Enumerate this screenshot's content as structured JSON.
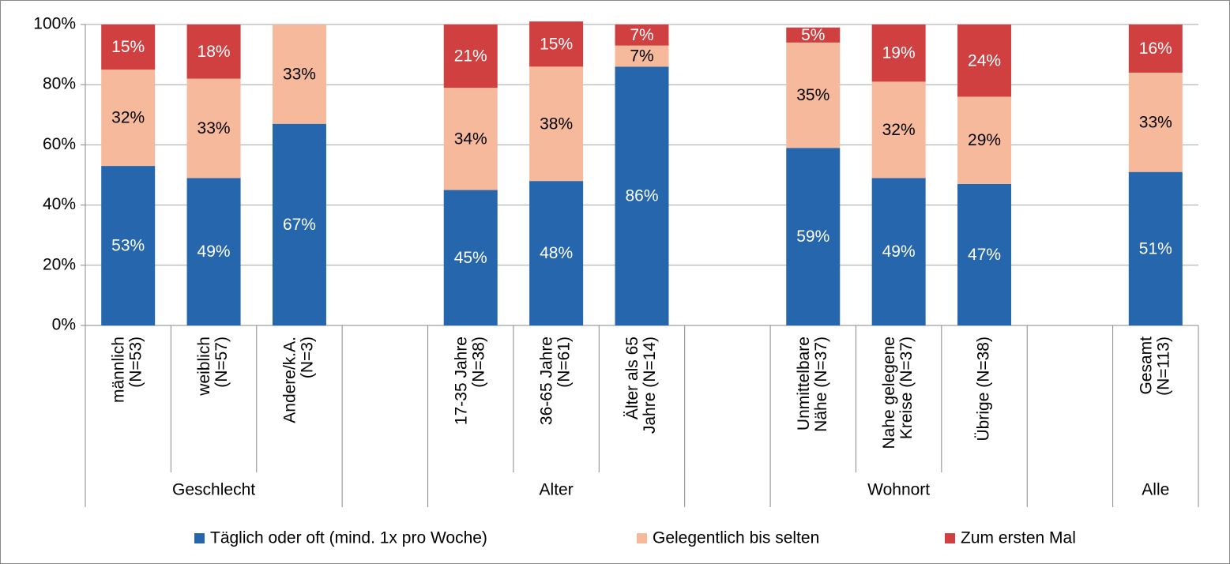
{
  "chart_data": {
    "type": "stacked-bar",
    "categories": [
      [
        "männlich",
        "(N=53)"
      ],
      [
        "weiblich",
        "(N=57)"
      ],
      [
        "Andere/k.A.",
        "(N=3)"
      ],
      null,
      [
        "17-35 Jahre",
        "(N=38)"
      ],
      [
        "36-65 Jahre",
        "(N=61)"
      ],
      [
        "Älter als 65",
        "Jahre (N=14)"
      ],
      null,
      [
        "Unmittelbare",
        "Nähe (N=37)"
      ],
      [
        "Nahe gelegene",
        "Kreise (N=37)"
      ],
      [
        "Übrige (N=38)"
      ],
      null,
      [
        "Gesamt",
        "(N=113)"
      ]
    ],
    "groups": [
      "Geschlecht",
      null,
      "Alter",
      null,
      "Wohnort",
      null,
      "Alle"
    ],
    "series": [
      {
        "name": "Täglich oder oft (mind. 1x pro Woche)",
        "color": "#2566ac",
        "label_color": "#ffffff",
        "values": [
          53,
          49,
          67,
          null,
          45,
          48,
          86,
          null,
          59,
          49,
          47,
          null,
          51
        ],
        "value_labels": [
          "53%",
          "49%",
          "67%",
          null,
          "45%",
          "48%",
          "86%",
          null,
          "59%",
          "49%",
          "47%",
          null,
          "51%"
        ]
      },
      {
        "name": "Gelegentlich bis selten",
        "color": "#f6b99b",
        "label_color": "#000000",
        "values": [
          32,
          33,
          33,
          null,
          34,
          38,
          7,
          null,
          35,
          32,
          29,
          null,
          33
        ],
        "value_labels": [
          "32%",
          "33%",
          "33%",
          null,
          "34%",
          "38%",
          "7%",
          null,
          "35%",
          "32%",
          "29%",
          null,
          "33%"
        ]
      },
      {
        "name": "Zum ersten Mal",
        "color": "#d04040",
        "label_color": "#ffffff",
        "values": [
          15,
          18,
          null,
          null,
          21,
          15,
          7,
          null,
          5,
          19,
          24,
          null,
          16
        ],
        "value_labels": [
          "15%",
          "18%",
          null,
          null,
          "21%",
          "15%",
          "7%",
          null,
          "5%",
          "19%",
          "24%",
          null,
          "16%"
        ]
      }
    ],
    "ylim": [
      0,
      100
    ],
    "yticks": [
      {
        "value": 0,
        "label": "0%"
      },
      {
        "value": 20,
        "label": "20%"
      },
      {
        "value": 40,
        "label": "40%"
      },
      {
        "value": 60,
        "label": "60%"
      },
      {
        "value": 80,
        "label": "80%"
      },
      {
        "value": 100,
        "label": "100%"
      }
    ],
    "grid": true,
    "legend": "bottom"
  }
}
